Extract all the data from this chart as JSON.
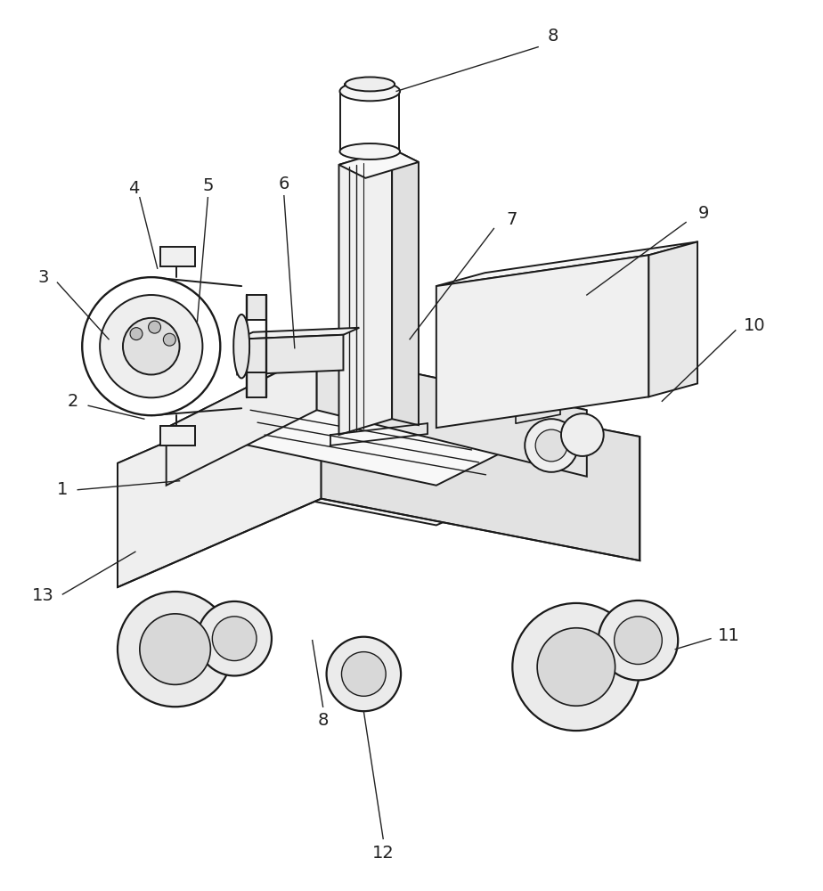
{
  "bg": "#ffffff",
  "lc": "#1a1a1a",
  "lw": 1.4,
  "ann_lw": 1.0,
  "ann_color": "#222222",
  "label_fs": 14,
  "label_color": "#222222"
}
